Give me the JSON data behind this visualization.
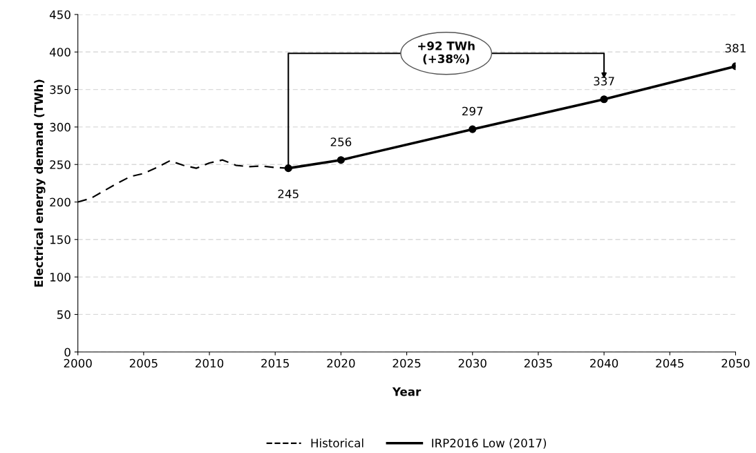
{
  "chart_data": {
    "type": "line",
    "xlabel": "Year",
    "ylabel": "Electrical energy demand (TWh)",
    "xlim": [
      2000,
      2050
    ],
    "xticks": [
      2000,
      2005,
      2010,
      2015,
      2020,
      2025,
      2030,
      2035,
      2040,
      2045,
      2050
    ],
    "ylim": [
      0,
      450
    ],
    "yticks": [
      0,
      50,
      100,
      150,
      200,
      250,
      300,
      350,
      400,
      450
    ],
    "grid": "y",
    "legend": "bottom",
    "series": [
      {
        "name": "Historical",
        "color": "#000000",
        "line_style": "dashed",
        "marker": "none",
        "x": [
          2000,
          2001,
          2002,
          2003,
          2004,
          2005,
          2006,
          2007,
          2008,
          2009,
          2010,
          2011,
          2012,
          2013,
          2014,
          2015,
          2016
        ],
        "values": [
          200,
          205,
          215,
          225,
          234,
          238,
          246,
          255,
          249,
          245,
          252,
          256,
          249,
          247,
          248,
          246,
          245
        ]
      },
      {
        "name": "IRP2016 Low (2017)",
        "color": "#000000",
        "line_style": "solid",
        "marker": "circle",
        "data_labels": true,
        "x": [
          2016,
          2020,
          2030,
          2040,
          2050
        ],
        "values": [
          245,
          256,
          297,
          337,
          381
        ]
      }
    ],
    "annotations": [
      {
        "text": "+92 TWh\n(+38%)",
        "x": 2016,
        "y": 245
      }
    ]
  }
}
